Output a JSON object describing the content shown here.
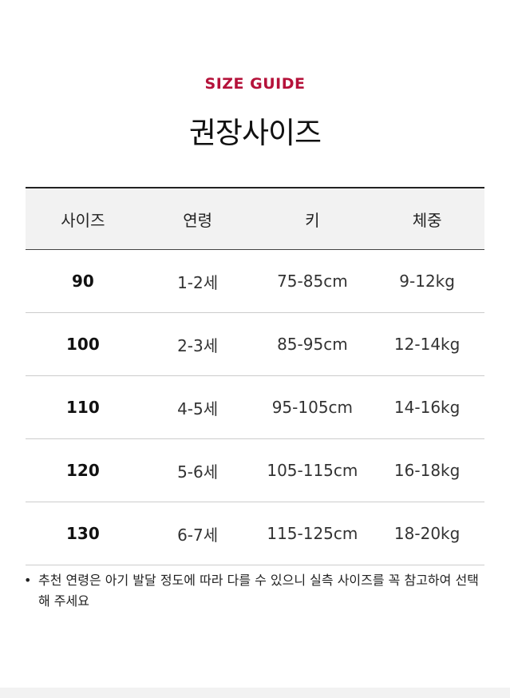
{
  "header": {
    "eyebrow": "SIZE GUIDE",
    "title": "권장사이즈",
    "accent_color": "#b5123a"
  },
  "table": {
    "columns": [
      "사이즈",
      "연령",
      "키",
      "체중"
    ],
    "rows": [
      [
        "90",
        "1-2세",
        "75-85cm",
        "9-12kg"
      ],
      [
        "100",
        "2-3세",
        "85-95cm",
        "12-14kg"
      ],
      [
        "110",
        "4-5세",
        "95-105cm",
        "14-16kg"
      ],
      [
        "120",
        "5-6세",
        "105-115cm",
        "16-18kg"
      ],
      [
        "130",
        "6-7세",
        "115-125cm",
        "18-20kg"
      ]
    ]
  },
  "note": {
    "bullet": "•",
    "text": "추천 연령은 아기 발달 정도에 따라 다를 수 있으니 실측 사이즈를 꼭 참고하여 선택해 주세요"
  }
}
